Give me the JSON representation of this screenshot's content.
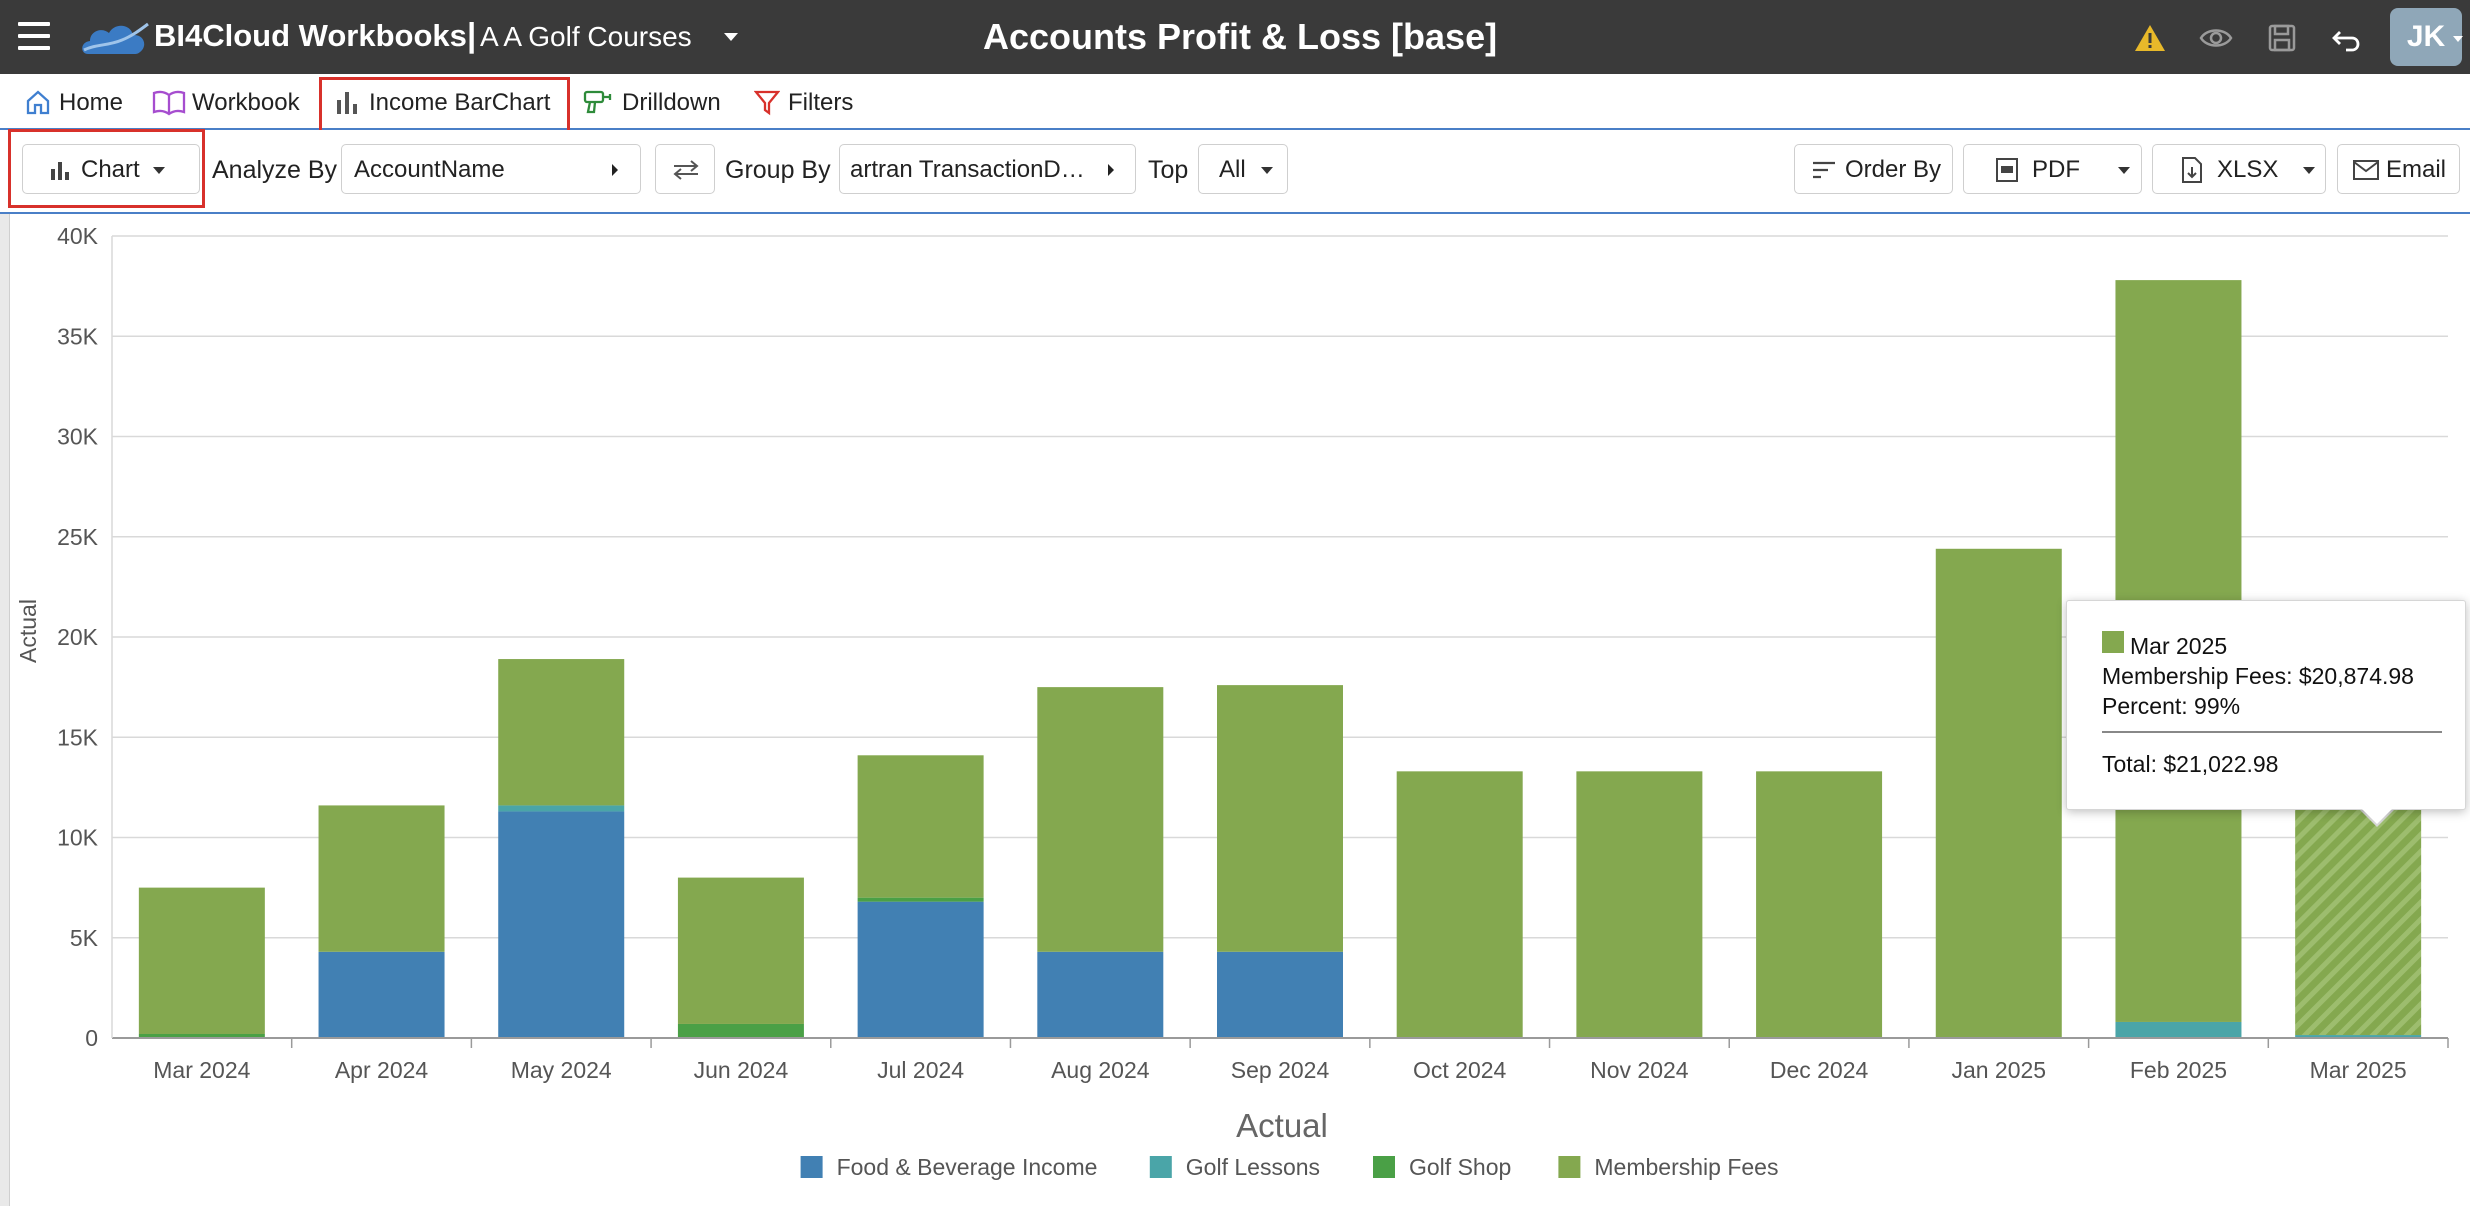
{
  "header": {
    "brand": "BI4Cloud Workbooks",
    "separator": "|",
    "org": "A A Golf Courses",
    "title": "Accounts Profit & Loss [base]",
    "avatar": "JK",
    "icons": [
      "menu-icon",
      "warning-icon",
      "eye-icon",
      "save-icon",
      "undo-icon"
    ]
  },
  "tabs": [
    {
      "label": "Home",
      "icon": "home-icon"
    },
    {
      "label": "Workbook",
      "icon": "book-icon"
    },
    {
      "label": "Income BarChart",
      "icon": "bar-chart-icon"
    },
    {
      "label": "Drilldown",
      "icon": "drill-icon"
    },
    {
      "label": "Filters",
      "icon": "filter-icon"
    }
  ],
  "toolbar": {
    "chart_label": "Chart",
    "analyze_by_label": "Analyze By",
    "analyze_by_value": "AccountName",
    "group_by_label": "Group By",
    "group_by_value": "artran TransactionD…",
    "top_label": "Top",
    "top_value": "All",
    "order_by": "Order By",
    "pdf": "PDF",
    "xlsx": "XLSX",
    "email": "Email"
  },
  "chart_data": {
    "type": "bar",
    "stacked": true,
    "title": "",
    "xlabel": "Actual",
    "ylabel": "Actual",
    "ylim": [
      0,
      40000
    ],
    "yticks": [
      0,
      5000,
      10000,
      15000,
      20000,
      25000,
      30000,
      35000,
      40000
    ],
    "ytick_labels": [
      "0",
      "5K",
      "10K",
      "15K",
      "20K",
      "25K",
      "30K",
      "35K",
      "40K"
    ],
    "grid": true,
    "legend_position": "bottom",
    "categories": [
      "Mar 2024",
      "Apr 2024",
      "May 2024",
      "Jun 2024",
      "Jul 2024",
      "Aug 2024",
      "Sep 2024",
      "Oct 2024",
      "Nov 2024",
      "Dec 2024",
      "Jan 2025",
      "Feb 2025",
      "Mar 2025"
    ],
    "series": [
      {
        "name": "Food & Beverage Income",
        "color": "#4180b3",
        "values": [
          0,
          4300,
          11300,
          0,
          6800,
          4300,
          4300,
          0,
          0,
          0,
          0,
          0,
          0
        ]
      },
      {
        "name": "Golf Lessons",
        "color": "#4aa5a8",
        "values": [
          0,
          0,
          300,
          0,
          0,
          0,
          0,
          0,
          0,
          0,
          0,
          800,
          148
        ]
      },
      {
        "name": "Golf Shop",
        "color": "#4aa046",
        "values": [
          200,
          0,
          0,
          700,
          200,
          0,
          0,
          0,
          0,
          0,
          0,
          0,
          0
        ]
      },
      {
        "name": "Membership Fees",
        "color": "#84a84f",
        "values": [
          7300,
          7300,
          7300,
          7300,
          7100,
          13200,
          13300,
          13300,
          13300,
          13300,
          24400,
          37000,
          20874.98
        ]
      }
    ],
    "hover_category": "Mar 2025"
  },
  "tooltip": {
    "title": "Mar 2025",
    "line1": "Membership Fees: $20,874.98",
    "line2": "Percent: 99%",
    "total": "Total: $21,022.98"
  }
}
